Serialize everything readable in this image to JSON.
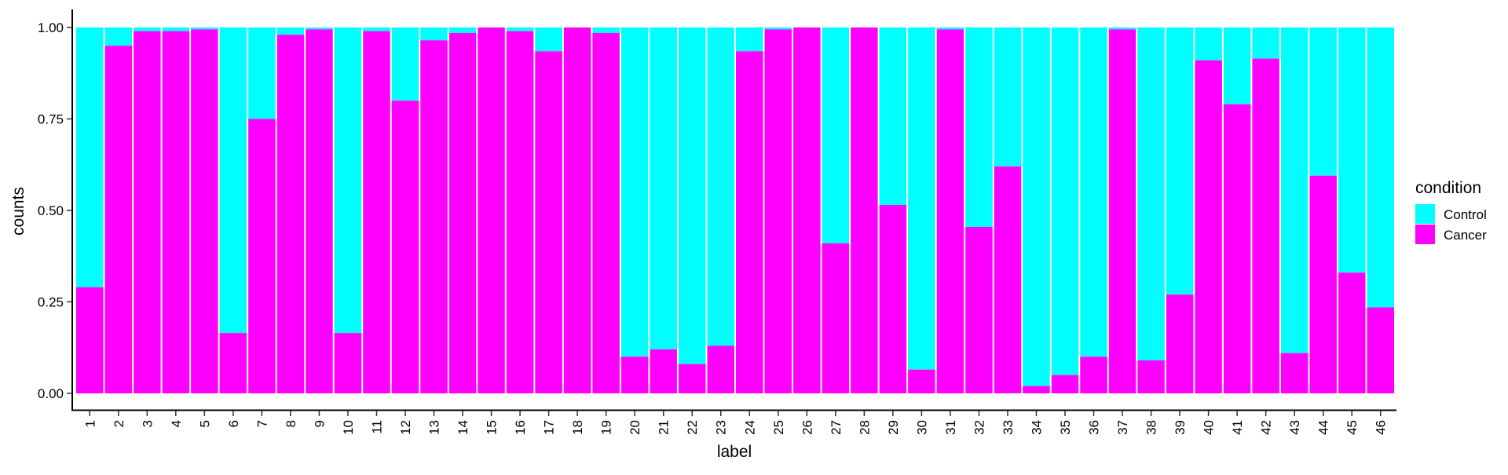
{
  "chart_data": {
    "type": "bar",
    "stacked": true,
    "normalized": true,
    "xlabel": "label",
    "ylabel": "counts",
    "ylim": [
      0,
      1
    ],
    "yticks": [
      "0.00",
      "0.25",
      "0.50",
      "0.75",
      "1.00"
    ],
    "ytick_values": [
      0,
      0.25,
      0.5,
      0.75,
      1.0
    ],
    "grid": false,
    "legend": {
      "title": "condition",
      "position": "right"
    },
    "categories": [
      "1",
      "2",
      "3",
      "4",
      "5",
      "6",
      "7",
      "8",
      "9",
      "10",
      "11",
      "12",
      "13",
      "14",
      "15",
      "16",
      "17",
      "18",
      "19",
      "20",
      "21",
      "22",
      "23",
      "24",
      "25",
      "26",
      "27",
      "28",
      "29",
      "30",
      "31",
      "32",
      "33",
      "34",
      "35",
      "36",
      "37",
      "38",
      "39",
      "40",
      "41",
      "42",
      "43",
      "44",
      "45",
      "46"
    ],
    "series": [
      {
        "name": "Cancer",
        "color": "#ff00ff",
        "values": [
          0.29,
          0.95,
          0.99,
          0.99,
          0.995,
          0.165,
          0.75,
          0.98,
          0.995,
          0.165,
          0.99,
          0.8,
          0.965,
          0.985,
          1.0,
          0.99,
          0.935,
          1.0,
          0.985,
          0.1,
          0.12,
          0.08,
          0.13,
          0.935,
          0.995,
          1.0,
          0.41,
          1.0,
          0.515,
          0.065,
          0.995,
          0.455,
          0.62,
          0.02,
          0.05,
          0.1,
          0.995,
          0.09,
          0.27,
          0.91,
          0.79,
          0.915,
          0.11,
          0.595,
          0.33,
          0.235
        ]
      },
      {
        "name": "Control",
        "color": "#00ffff",
        "values": [
          0.71,
          0.05,
          0.01,
          0.01,
          0.005,
          0.835,
          0.25,
          0.02,
          0.005,
          0.835,
          0.01,
          0.2,
          0.035,
          0.015,
          0.0,
          0.01,
          0.065,
          0.0,
          0.015,
          0.9,
          0.88,
          0.92,
          0.87,
          0.065,
          0.005,
          0.0,
          0.59,
          0.0,
          0.485,
          0.935,
          0.005,
          0.545,
          0.38,
          0.98,
          0.95,
          0.9,
          0.005,
          0.91,
          0.73,
          0.09,
          0.21,
          0.085,
          0.89,
          0.405,
          0.67,
          0.765
        ]
      }
    ]
  }
}
